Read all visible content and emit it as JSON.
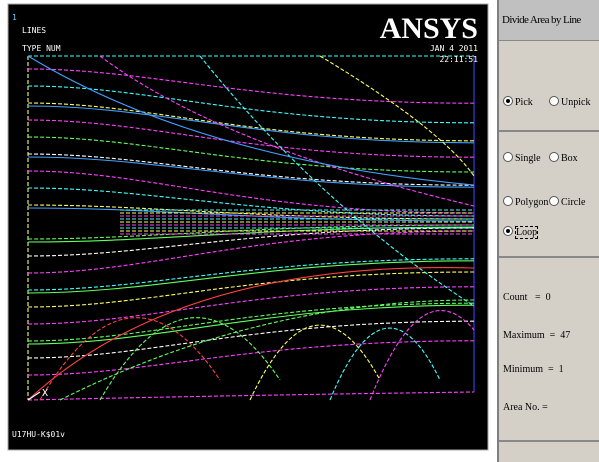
{
  "graphics": {
    "window_number": "1",
    "plot_type": "LINES",
    "label_mode": "TYPE NUM",
    "logo": "ANSYS",
    "date": "JAN  4 2011",
    "time": "22:11:51",
    "triad_label": "X",
    "footer": "U17HU-K$01v"
  },
  "panel": {
    "title": "Divide Area by Line",
    "mode_options": [
      "Pick",
      "Unpick"
    ],
    "shape_options": [
      "Single",
      "Box",
      "Polygon",
      "Circle",
      "Loop"
    ],
    "info": [
      "Count   =  0",
      "Maximum  =  47",
      "Minimum  =  1",
      "Area No. ="
    ]
  }
}
